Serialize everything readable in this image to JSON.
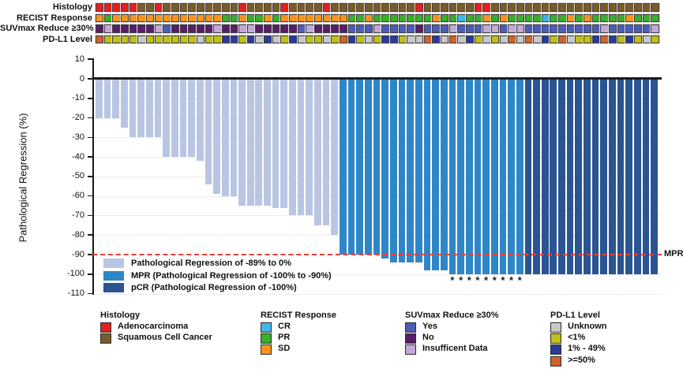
{
  "colors": {
    "bars": {
      "reg": "#b9c6e3",
      "mpr": "#2e86c7",
      "pcr": "#2a5492"
    },
    "histology": {
      "A": "#e32020",
      "S": "#7a5c2b"
    },
    "recist": {
      "CR": "#41b5ea",
      "PR": "#3aad2b",
      "SD": "#f7941e"
    },
    "suvmax": {
      "Y": "#4c5db8",
      "N": "#581e68",
      "I": "#c3a8d8"
    },
    "pdl1": {
      "U": "#c8c8c8",
      "L": "#c0c018",
      "M": "#2a3a9a",
      "H": "#d2622a"
    },
    "reference_line": "#ea3e3b"
  },
  "tracks": {
    "rows": [
      {
        "id": "histology",
        "label": "Histology",
        "codes": [
          "A",
          "A",
          "A",
          "A",
          "A",
          "S",
          "S",
          "A",
          "S",
          "S",
          "S",
          "S",
          "S",
          "S",
          "S",
          "S",
          "S",
          "A",
          "S",
          "S",
          "S",
          "S",
          "A",
          "S",
          "S",
          "S",
          "S",
          "A",
          "S",
          "S",
          "S",
          "S",
          "S",
          "S",
          "S",
          "S",
          "S",
          "S",
          "A",
          "S",
          "S",
          "S",
          "S",
          "S",
          "S",
          "A",
          "A",
          "S",
          "S",
          "S",
          "S",
          "S",
          "S",
          "S",
          "S",
          "S",
          "S",
          "S",
          "S",
          "S",
          "S",
          "S",
          "S",
          "S",
          "S",
          "S",
          "S"
        ]
      },
      {
        "id": "recist",
        "label": "RECIST Response",
        "codes": [
          "SD",
          "PR",
          "SD",
          "SD",
          "SD",
          "SD",
          "SD",
          "SD",
          "SD",
          "SD",
          "SD",
          "SD",
          "SD",
          "SD",
          "SD",
          "PR",
          "PR",
          "SD",
          "PR",
          "PR",
          "SD",
          "PR",
          "SD",
          "SD",
          "SD",
          "SD",
          "SD",
          "SD",
          "SD",
          "SD",
          "PR",
          "PR",
          "SD",
          "PR",
          "PR",
          "PR",
          "PR",
          "PR",
          "PR",
          "PR",
          "SD",
          "PR",
          "PR",
          "CR",
          "PR",
          "PR",
          "SD",
          "PR",
          "SD",
          "PR",
          "PR",
          "PR",
          "PR",
          "CR",
          "PR",
          "PR",
          "SD",
          "PR",
          "SD",
          "PR",
          "PR",
          "PR",
          "PR",
          "SD",
          "PR",
          "PR",
          "PR"
        ]
      },
      {
        "id": "suvmax",
        "label": "SUVmax Reduce ≥30%",
        "codes": [
          "N",
          "I",
          "N",
          "N",
          "N",
          "N",
          "N",
          "I",
          "Y",
          "N",
          "N",
          "N",
          "N",
          "N",
          "I",
          "N",
          "N",
          "I",
          "I",
          "N",
          "N",
          "N",
          "N",
          "N",
          "Y",
          "I",
          "N",
          "N",
          "N",
          "N",
          "Y",
          "Y",
          "Y",
          "I",
          "Y",
          "Y",
          "Y",
          "Y",
          "N",
          "Y",
          "Y",
          "Y",
          "I",
          "Y",
          "Y",
          "Y",
          "I",
          "I",
          "Y",
          "I",
          "I",
          "Y",
          "Y",
          "Y",
          "Y",
          "Y",
          "Y",
          "Y",
          "Y",
          "Y",
          "I",
          "Y",
          "Y",
          "Y",
          "Y",
          "Y",
          "I"
        ]
      },
      {
        "id": "pdl1",
        "label": "PD-L1 Level",
        "codes": [
          "H",
          "L",
          "L",
          "L",
          "L",
          "U",
          "L",
          "L",
          "L",
          "L",
          "L",
          "L",
          "U",
          "L",
          "L",
          "M",
          "M",
          "L",
          "M",
          "U",
          "M",
          "U",
          "L",
          "M",
          "U",
          "L",
          "L",
          "U",
          "L",
          "H",
          "M",
          "L",
          "U",
          "L",
          "M",
          "M",
          "L",
          "U",
          "U",
          "H",
          "M",
          "U",
          "H",
          "U",
          "M",
          "L",
          "U",
          "L",
          "U",
          "H",
          "U",
          "H",
          "U",
          "M",
          "L",
          "H",
          "U",
          "L",
          "L",
          "M",
          "H",
          "M",
          "L",
          "M",
          "L",
          "U",
          "L"
        ]
      }
    ]
  },
  "chart_data": {
    "type": "bar",
    "title": "",
    "xlabel": "",
    "ylabel": "Pathological Regression (%)",
    "ylim": [
      -110,
      10
    ],
    "yticks": [
      10,
      0,
      -10,
      -20,
      -30,
      -40,
      -50,
      -60,
      -70,
      -80,
      -90,
      -100,
      -110
    ],
    "grid": true,
    "n_patients": 67,
    "values": [
      -20,
      -20,
      -20,
      -25,
      -30,
      -30,
      -30,
      -30,
      -40,
      -40,
      -40,
      -40,
      -42,
      -54,
      -59,
      -60,
      -60,
      -65,
      -65,
      -65,
      -65,
      -66,
      -66,
      -70,
      -70,
      -70,
      -75,
      -75,
      -80,
      -90,
      -90,
      -90,
      -90,
      -90,
      -92,
      -94,
      -94,
      -94,
      -94,
      -98,
      -98,
      -98,
      -100,
      -100,
      -100,
      -100,
      -100,
      -100,
      -100,
      -100,
      -100,
      -100,
      -100,
      -100,
      -100,
      -100,
      -100,
      -100,
      -100,
      -100,
      -100,
      -100,
      -100,
      -100,
      -100,
      -100,
      -100
    ],
    "bar_groups": [
      "reg",
      "reg",
      "reg",
      "reg",
      "reg",
      "reg",
      "reg",
      "reg",
      "reg",
      "reg",
      "reg",
      "reg",
      "reg",
      "reg",
      "reg",
      "reg",
      "reg",
      "reg",
      "reg",
      "reg",
      "reg",
      "reg",
      "reg",
      "reg",
      "reg",
      "reg",
      "reg",
      "reg",
      "reg",
      "mpr",
      "mpr",
      "mpr",
      "mpr",
      "mpr",
      "mpr",
      "mpr",
      "mpr",
      "mpr",
      "mpr",
      "mpr",
      "mpr",
      "mpr",
      "mpr",
      "mpr",
      "mpr",
      "mpr",
      "mpr",
      "mpr",
      "mpr",
      "mpr",
      "mpr",
      "pcr",
      "pcr",
      "pcr",
      "pcr",
      "pcr",
      "pcr",
      "pcr",
      "pcr",
      "pcr",
      "pcr",
      "pcr",
      "pcr",
      "pcr",
      "pcr",
      "pcr",
      "pcr"
    ],
    "asterisk_bar_indices": [
      43,
      44,
      45,
      46,
      47,
      48,
      49,
      50,
      51
    ],
    "reference_line": {
      "value": -90,
      "label": "MPR",
      "style": "dashed"
    }
  },
  "plot_legend": {
    "items": [
      {
        "color_key": "reg",
        "label": "Pathological Regression of -89% to 0%"
      },
      {
        "color_key": "mpr",
        "label": "MPR (Pathological Regression of -100% to -90%)"
      },
      {
        "color_key": "pcr",
        "label": "pCR (Pathological Regression of -100%)"
      }
    ]
  },
  "bottom_legend": {
    "groups": [
      {
        "title": "Histology",
        "map": "histology",
        "items": [
          {
            "key": "A",
            "label": "Adenocarcinoma"
          },
          {
            "key": "S",
            "label": "Squamous Cell Cancer"
          }
        ]
      },
      {
        "title": "RECIST Response",
        "map": "recist",
        "items": [
          {
            "key": "CR",
            "label": "CR"
          },
          {
            "key": "PR",
            "label": "PR"
          },
          {
            "key": "SD",
            "label": "SD"
          }
        ]
      },
      {
        "title": "SUVmax Reduce ≥30%",
        "map": "suvmax",
        "items": [
          {
            "key": "Y",
            "label": "Yes"
          },
          {
            "key": "N",
            "label": "No"
          },
          {
            "key": "I",
            "label": "Insufficent Data"
          }
        ]
      },
      {
        "title": "PD-L1 Level",
        "map": "pdl1",
        "items": [
          {
            "key": "U",
            "label": "Unknown"
          },
          {
            "key": "L",
            "label": "<1%"
          },
          {
            "key": "M",
            "label": "1% - 49%"
          },
          {
            "key": "H",
            "label": ">=50%"
          }
        ]
      }
    ]
  }
}
